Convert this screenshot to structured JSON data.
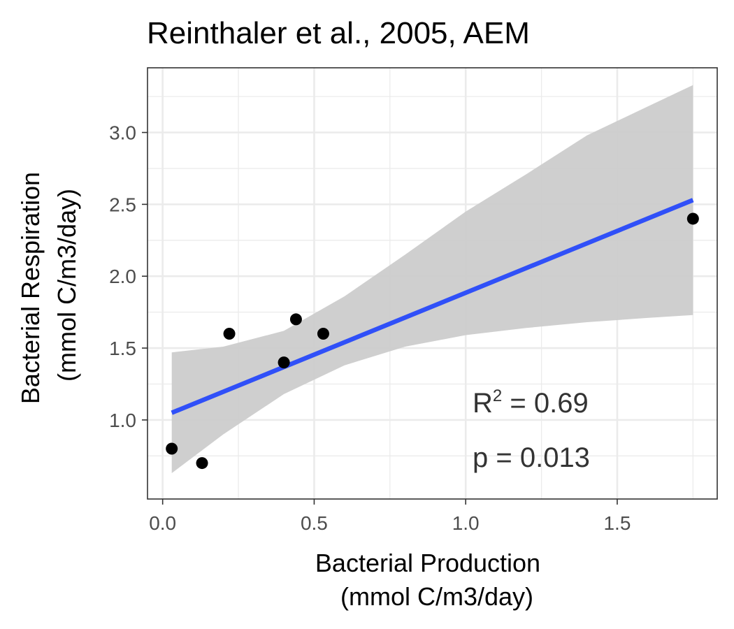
{
  "chart_data": {
    "type": "scatter",
    "title": "Reinthaler et al., 2005, AEM",
    "xlabel_lines": [
      "Bacterial Production",
      "(mmol C/m3/day)"
    ],
    "ylabel_lines": [
      "Bacterial Respiration",
      "(mmol C/m3/day)"
    ],
    "xlim": [
      -0.05,
      1.83
    ],
    "ylim": [
      0.45,
      3.45
    ],
    "x_ticks": [
      0.0,
      0.5,
      1.0,
      1.5
    ],
    "x_tick_labels": [
      "0.0",
      "0.5",
      "1.0",
      "1.5"
    ],
    "y_ticks": [
      1.0,
      1.5,
      2.0,
      2.5,
      3.0
    ],
    "y_tick_labels": [
      "1.0",
      "1.5",
      "2.0",
      "2.5",
      "3.0"
    ],
    "grid": true,
    "points": [
      {
        "x": 0.03,
        "y": 0.8
      },
      {
        "x": 0.13,
        "y": 0.7
      },
      {
        "x": 0.22,
        "y": 1.6
      },
      {
        "x": 0.4,
        "y": 1.4
      },
      {
        "x": 0.44,
        "y": 1.7
      },
      {
        "x": 0.53,
        "y": 1.6
      },
      {
        "x": 1.75,
        "y": 2.4
      }
    ],
    "fit": {
      "type": "linear",
      "x_range": [
        0.03,
        1.75
      ],
      "line": [
        [
          0.03,
          1.05
        ],
        [
          1.75,
          2.53
        ]
      ],
      "confidence_band": {
        "x": [
          0.03,
          0.2,
          0.4,
          0.6,
          0.8,
          1.0,
          1.2,
          1.4,
          1.6,
          1.75
        ],
        "upper": [
          1.47,
          1.51,
          1.62,
          1.86,
          2.15,
          2.45,
          2.71,
          2.98,
          3.18,
          3.33
        ],
        "lower": [
          0.63,
          0.9,
          1.18,
          1.38,
          1.51,
          1.59,
          1.64,
          1.68,
          1.71,
          1.73
        ]
      }
    },
    "annotations": {
      "r2_base": "R",
      "r2_sup": "2",
      "r2_rest": " = 0.69",
      "p_value": "p = 0.013"
    },
    "colors": {
      "points": "#000000",
      "line": "#3050f8",
      "band": "#cccccc",
      "panel_border": "#333333",
      "grid_major": "#ebebeb"
    }
  }
}
